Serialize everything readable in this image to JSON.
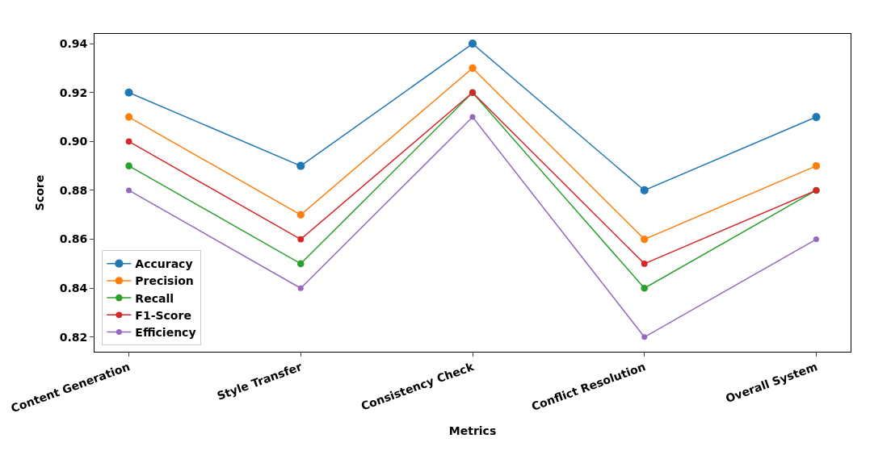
{
  "chart_data": {
    "type": "line",
    "xlabel": "Metrics",
    "ylabel": "Score",
    "categories": [
      "Content Generation",
      "Style Transfer",
      "Consistency Check",
      "Conflict Resolution",
      "Overall System"
    ],
    "series": [
      {
        "name": "Accuracy",
        "color": "#1f77b4",
        "values": [
          0.92,
          0.89,
          0.94,
          0.88,
          0.91
        ]
      },
      {
        "name": "Precision",
        "color": "#ff7f0e",
        "values": [
          0.91,
          0.87,
          0.93,
          0.86,
          0.89
        ]
      },
      {
        "name": "Recall",
        "color": "#2ca02c",
        "values": [
          0.89,
          0.85,
          0.92,
          0.84,
          0.88
        ]
      },
      {
        "name": "F1-Score",
        "color": "#d62728",
        "values": [
          0.9,
          0.86,
          0.92,
          0.85,
          0.88
        ]
      },
      {
        "name": "Efficiency",
        "color": "#9467bd",
        "values": [
          0.88,
          0.84,
          0.91,
          0.82,
          0.86
        ]
      }
    ],
    "ylim": [
      0.814,
      0.944
    ],
    "yticks": [
      0.82,
      0.84,
      0.86,
      0.88,
      {
        "value": 0.9,
        "label": "0.90"
      },
      0.92,
      0.94
    ],
    "legend": "bottom left",
    "marker": "circle",
    "line_style": "solid"
  }
}
